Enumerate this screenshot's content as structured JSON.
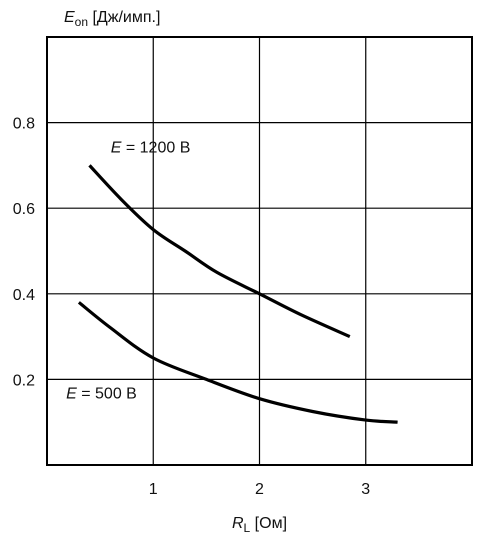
{
  "chart_data": {
    "type": "line",
    "title": "",
    "ylabel": {
      "symbol": "E",
      "subscript": "on",
      "unit": " [Дж/имп.]"
    },
    "xlabel": {
      "symbol": "R",
      "subscript": "L",
      "unit": " [Ом]"
    },
    "xlim": [
      0,
      4
    ],
    "ylim": [
      0,
      1.0
    ],
    "x_ticks": [
      1,
      2,
      3
    ],
    "x_tick_labels": [
      "1",
      "2",
      "3"
    ],
    "y_ticks": [
      0.2,
      0.4,
      0.6,
      0.8
    ],
    "y_tick_labels": [
      "0.2",
      "0.4",
      "0.6",
      "0.8"
    ],
    "x_grid": [
      1,
      2,
      3
    ],
    "y_grid": [
      0.2,
      0.4,
      0.6,
      0.8
    ],
    "grid": true,
    "series": [
      {
        "name": "E = 1200 В",
        "label": {
          "symbol": "E",
          "rest": " = 1200 В"
        },
        "x": [
          0.4,
          0.7,
          1.0,
          1.3,
          1.6,
          2.0,
          2.4,
          2.85
        ],
        "y": [
          0.7,
          0.62,
          0.55,
          0.5,
          0.45,
          0.4,
          0.35,
          0.3
        ]
      },
      {
        "name": "E = 500 В",
        "label": {
          "symbol": "E",
          "rest": " = 500 В"
        },
        "x": [
          0.3,
          0.6,
          1.0,
          1.5,
          2.0,
          2.5,
          3.0,
          3.3
        ],
        "y": [
          0.38,
          0.32,
          0.25,
          0.2,
          0.155,
          0.125,
          0.105,
          0.1
        ]
      }
    ]
  }
}
